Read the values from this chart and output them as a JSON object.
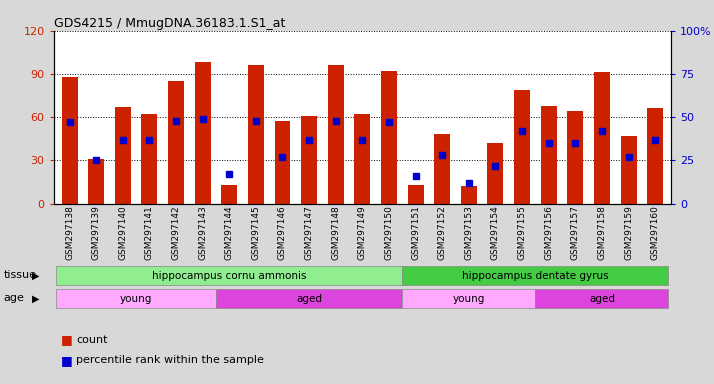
{
  "title": "GDS4215 / MmugDNA.36183.1.S1_at",
  "samples": [
    "GSM297138",
    "GSM297139",
    "GSM297140",
    "GSM297141",
    "GSM297142",
    "GSM297143",
    "GSM297144",
    "GSM297145",
    "GSM297146",
    "GSM297147",
    "GSM297148",
    "GSM297149",
    "GSM297150",
    "GSM297151",
    "GSM297152",
    "GSM297153",
    "GSM297154",
    "GSM297155",
    "GSM297156",
    "GSM297157",
    "GSM297158",
    "GSM297159",
    "GSM297160"
  ],
  "counts": [
    88,
    31,
    67,
    62,
    85,
    98,
    13,
    96,
    57,
    61,
    96,
    62,
    92,
    13,
    48,
    12,
    42,
    79,
    68,
    64,
    91,
    47,
    66
  ],
  "percentiles": [
    47,
    25,
    37,
    37,
    48,
    49,
    17,
    48,
    27,
    37,
    48,
    37,
    47,
    16,
    28,
    12,
    22,
    42,
    35,
    35,
    42,
    27,
    37
  ],
  "count_color": "#cc2200",
  "percentile_color": "#0000cc",
  "ylim_left": [
    0,
    120
  ],
  "ylim_right": [
    0,
    100
  ],
  "yticks_left": [
    0,
    30,
    60,
    90,
    120
  ],
  "ytick_labels_left": [
    "0",
    "30",
    "60",
    "90",
    "120"
  ],
  "yticks_right": [
    0,
    25,
    50,
    75,
    100
  ],
  "ytick_labels_right": [
    "0",
    "25",
    "50",
    "75",
    "100%"
  ],
  "tissue_groups": [
    {
      "label": "hippocampus cornu ammonis",
      "start": 0,
      "end": 12,
      "color": "#90ee90"
    },
    {
      "label": "hippocampus dentate gyrus",
      "start": 13,
      "end": 22,
      "color": "#44cc44"
    }
  ],
  "age_groups": [
    {
      "label": "young",
      "start": 0,
      "end": 5,
      "color": "#ffaaff"
    },
    {
      "label": "aged",
      "start": 6,
      "end": 12,
      "color": "#dd44dd"
    },
    {
      "label": "young",
      "start": 13,
      "end": 17,
      "color": "#ffaaff"
    },
    {
      "label": "aged",
      "start": 18,
      "end": 22,
      "color": "#dd44dd"
    }
  ],
  "tissue_label": "tissue",
  "age_label": "age",
  "background_color": "#d8d8d8",
  "plot_bg_color": "#ffffff",
  "bar_width": 0.6
}
